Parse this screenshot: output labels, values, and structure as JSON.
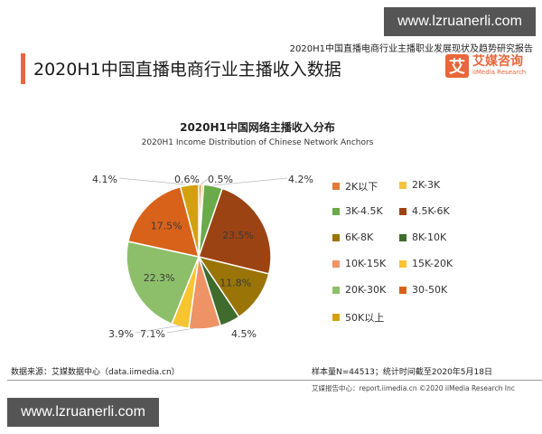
{
  "watermark": {
    "top": "www.lzruanerli.com",
    "bottom": "www.lzruanerli.com"
  },
  "header": {
    "report_title": "2020H1中国直播电商行业主播职业发展现状及趋势研究报告",
    "main_title": "2020H1中国直播电商行业主播收入数据",
    "logo": {
      "mark": "艾",
      "name_cn": "艾媒咨询",
      "name_en": "iiMedia Research"
    },
    "accent_color": "#e8663a"
  },
  "footer": {
    "source": "数据来源：艾媒数据中心（data.iimedia.cn）",
    "sample": "样本量N=44513；统计时间截至2020年5月18日",
    "copyright": "艾媒报告中心：report.iimedia.cn  ©2020  iiMedia Research Inc"
  },
  "chart_data": {
    "type": "pie",
    "title": "2020H1中国网络主播收入分布",
    "subtitle": "2020H1 Income Distribution of Chinese Network Anchors",
    "unit": "%",
    "legend_position": "right",
    "categories": [
      "2K以下",
      "2K-3K",
      "3K-4.5K",
      "4.5K-6K",
      "6K-8K",
      "8K-10K",
      "10K-15K",
      "15K-20K",
      "20K-30K",
      "30-50K",
      "50K以上"
    ],
    "values": [
      0.6,
      0.5,
      4.2,
      23.5,
      11.8,
      4.5,
      7.1,
      3.9,
      22.3,
      17.5,
      4.1
    ],
    "labels": [
      "0.6%",
      "0.5%",
      "4.2%",
      "23.5%",
      "11.8%",
      "4.5%",
      "7.1%",
      "3.9%",
      "22.3%",
      "17.5%",
      "4.1%"
    ],
    "colors": [
      "#e07b39",
      "#f5c242",
      "#6aaa4a",
      "#9c4313",
      "#9a7406",
      "#3f6b2c",
      "#ee9366",
      "#f7c531",
      "#8dbf6a",
      "#d8621a",
      "#d4a10e"
    ]
  }
}
